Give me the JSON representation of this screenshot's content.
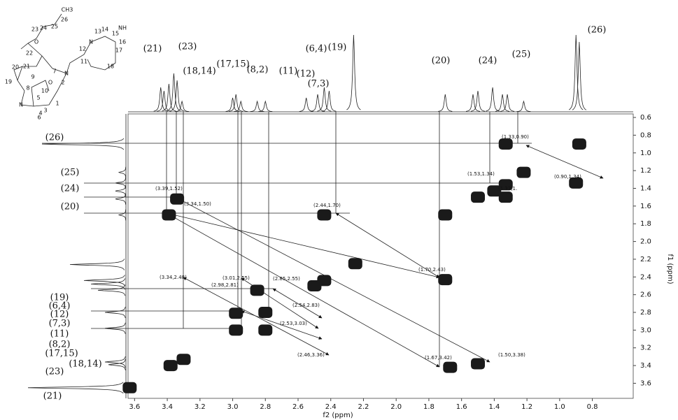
{
  "chart_data": {
    "type": "nmr2d",
    "x_label": "f2 (ppm)",
    "y_label": "f1 (ppm)",
    "xlim": [
      3.64,
      0.55
    ],
    "ylim": [
      0.56,
      3.77
    ],
    "xticks": [
      3.6,
      3.4,
      3.2,
      {
        "value": 3,
        "label": "3.0"
      },
      2.8,
      2.6,
      2.4,
      2.2,
      {
        "value": 2,
        "label": "2.0"
      },
      1.8,
      1.6,
      1.4,
      1.2,
      {
        "value": 1,
        "label": "1.0"
      },
      0.8
    ],
    "yticks": [
      0.6,
      0.8,
      {
        "value": 1,
        "label": "1.0"
      },
      1.2,
      1.4,
      1.6,
      1.8,
      {
        "value": 2,
        "label": "2.0"
      },
      2.2,
      2.4,
      2.6,
      2.8,
      {
        "value": 3,
        "label": "3.0"
      },
      3.2,
      3.4,
      3.6
    ],
    "color": "#1a1a1a",
    "peaks": {
      "x": [
        1.33,
        0.88,
        0.9,
        1.22,
        1.33,
        1.5,
        1.4,
        1.33,
        1.7,
        2.44,
        3.39,
        3.34,
        1.7,
        2.25,
        2.44,
        2.5,
        2.85,
        2.98,
        2.98,
        2.8,
        2.8,
        3.38,
        3.3,
        1.67,
        1.5,
        3.63
      ],
      "y": [
        0.9,
        0.9,
        1.34,
        1.22,
        1.36,
        1.5,
        1.43,
        1.5,
        1.7,
        1.7,
        1.7,
        1.52,
        2.43,
        2.25,
        2.44,
        2.5,
        2.55,
        2.81,
        3.0,
        2.8,
        3.0,
        3.4,
        3.33,
        3.42,
        3.38,
        3.65
      ]
    },
    "f2_projection": {
      "ppm": [
        3.44,
        3.42,
        3.39,
        3.36,
        3.34,
        3.31,
        3.0,
        2.98,
        2.95,
        2.85,
        2.8,
        2.55,
        2.48,
        2.44,
        2.41,
        2.26,
        1.7,
        1.53,
        1.5,
        1.41,
        1.35,
        1.32,
        1.22,
        0.9,
        0.88
      ],
      "height": [
        35,
        30,
        40,
        55,
        45,
        15,
        20,
        25,
        15,
        15,
        15,
        20,
        25,
        35,
        30,
        110,
        25,
        25,
        30,
        35,
        25,
        25,
        15,
        110,
        100
      ]
    },
    "f1_projection": {
      "ppm": [
        0.9,
        1.22,
        1.34,
        1.43,
        1.52,
        1.7,
        2.26,
        2.44,
        2.48,
        2.55,
        2.8,
        2.98,
        3.36,
        3.39,
        3.65
      ],
      "height": [
        120,
        10,
        15,
        15,
        15,
        10,
        80,
        60,
        50,
        40,
        30,
        30,
        30,
        25,
        140
      ]
    },
    "top_labels": [
      "(21)",
      "(23)",
      "(18,14)",
      "(17,15)",
      "(8,2)",
      "(11)",
      "(12)",
      "(7,3)",
      "(6,4)",
      "(19)",
      "(20)",
      "(24)",
      "(25)",
      "(26)"
    ],
    "left_labels": [
      "(26)",
      "(25)",
      "(24)",
      "(20)",
      "(19)",
      "(6,4)",
      "(12)",
      "(7,3)",
      "(11)",
      "(8,2)",
      "(17,15)",
      "(23)",
      "(18,14)",
      "(21)"
    ],
    "annotations": [
      "(1.33,0.90)",
      "(1.53,1.34)",
      "(1.33,1.",
      "(0.90,1.34)",
      "(3.39,1.52)",
      "(3.34,1.50)",
      "(2.44,1.70)",
      "(1.70,2.43)",
      "(3.34,2.48)",
      "(3.01,2.55)",
      "(2.85,2.55)",
      "(2.98,2.81)",
      "(2.54,2.83)",
      "(2.53,3.03)",
      "(2.46,3.36)",
      "(1.67,3.42)",
      "(1.50,3.38)"
    ],
    "structure_labels": [
      "CH3",
      "26",
      "25",
      "24",
      "23",
      "O",
      "22",
      "21",
      "20",
      "19",
      "N",
      "8",
      "9",
      "O",
      "10",
      "5",
      "4",
      "3",
      "7",
      "2",
      "1",
      "N",
      "11",
      "12",
      "N",
      "13",
      "14",
      "15",
      "NH",
      "16",
      "17",
      "18",
      "6"
    ]
  }
}
